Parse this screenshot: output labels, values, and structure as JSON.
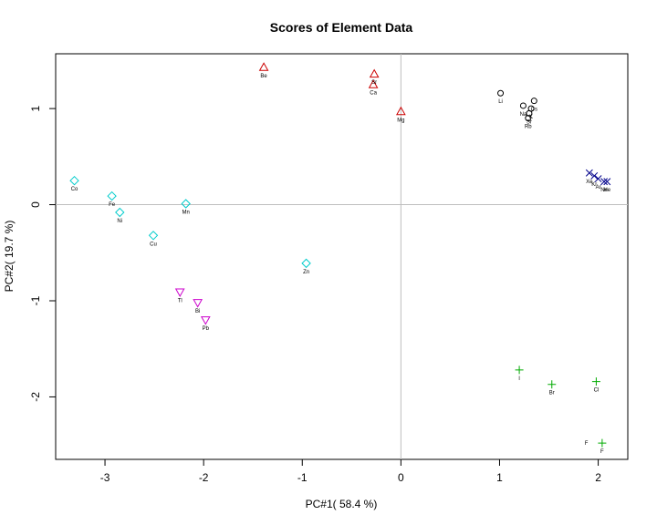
{
  "chart_data": {
    "type": "scatter",
    "title": "Scores of Element Data",
    "xlabel": "PC#1( 58.4 %)",
    "ylabel": "PC#2( 19.7 %)",
    "xlim": [
      -3.5,
      2.3
    ],
    "ylim": [
      -2.65,
      1.57
    ],
    "xticks": [
      -3,
      -2,
      -1,
      0,
      1,
      2
    ],
    "yticks": [
      -2,
      -1,
      0,
      1
    ],
    "reference_lines": {
      "x": 0,
      "y": 0,
      "color": "#bebebe"
    },
    "grid": false,
    "legend": "none",
    "series": [
      {
        "marker": "circle",
        "color": "#000000",
        "points": [
          {
            "label": "Li",
            "x": 1.01,
            "y": 1.16
          },
          {
            "label": "Na",
            "x": 1.24,
            "y": 1.03
          },
          {
            "label": "K",
            "x": 1.32,
            "y": 1.0
          },
          {
            "label": "Rb",
            "x": 1.29,
            "y": 0.9
          },
          {
            "label": "Cs",
            "x": 1.35,
            "y": 1.08
          },
          {
            "label": "Sr",
            "x": 1.3,
            "y": 0.95
          }
        ]
      },
      {
        "marker": "triangle-up",
        "color": "#cc0000",
        "points": [
          {
            "label": "Be",
            "x": -1.39,
            "y": 1.43
          },
          {
            "label": "Sr",
            "x": -0.27,
            "y": 1.36
          },
          {
            "label": "Ca",
            "x": -0.28,
            "y": 1.25
          },
          {
            "label": "Mg",
            "x": 0.0,
            "y": 0.97
          }
        ]
      },
      {
        "marker": "x",
        "color": "#00008b",
        "points": [
          {
            "label": "Xe",
            "x": 1.91,
            "y": 0.33
          },
          {
            "label": "Kr",
            "x": 1.96,
            "y": 0.3
          },
          {
            "label": "Ar",
            "x": 2.0,
            "y": 0.27
          },
          {
            "label": "Ne",
            "x": 2.06,
            "y": 0.24
          },
          {
            "label": "He",
            "x": 2.09,
            "y": 0.24
          }
        ]
      },
      {
        "marker": "diamond",
        "color": "#00cccc",
        "points": [
          {
            "label": "Co",
            "x": -3.31,
            "y": 0.25
          },
          {
            "label": "Fe",
            "x": -2.93,
            "y": 0.09
          },
          {
            "label": "Ni",
            "x": -2.85,
            "y": -0.08
          },
          {
            "label": "Mn",
            "x": -2.18,
            "y": 0.01
          },
          {
            "label": "Cu",
            "x": -2.51,
            "y": -0.32
          },
          {
            "label": "Zn",
            "x": -0.96,
            "y": -0.61
          }
        ]
      },
      {
        "marker": "triangle-down",
        "color": "#cc00cc",
        "points": [
          {
            "label": "Tl",
            "x": -2.24,
            "y": -0.91
          },
          {
            "label": "Bi",
            "x": -2.06,
            "y": -1.02
          },
          {
            "label": "Pb",
            "x": -1.98,
            "y": -1.2
          }
        ]
      },
      {
        "marker": "plus",
        "color": "#00aa00",
        "points": [
          {
            "label": "I",
            "x": 1.2,
            "y": -1.72
          },
          {
            "label": "Br",
            "x": 1.53,
            "y": -1.87
          },
          {
            "label": "Cl",
            "x": 1.98,
            "y": -1.84
          },
          {
            "label": "F",
            "x": 2.04,
            "y": -2.48
          }
        ]
      }
    ],
    "annotations": [
      {
        "text": "F",
        "x": 1.88,
        "y": -2.48
      }
    ]
  }
}
